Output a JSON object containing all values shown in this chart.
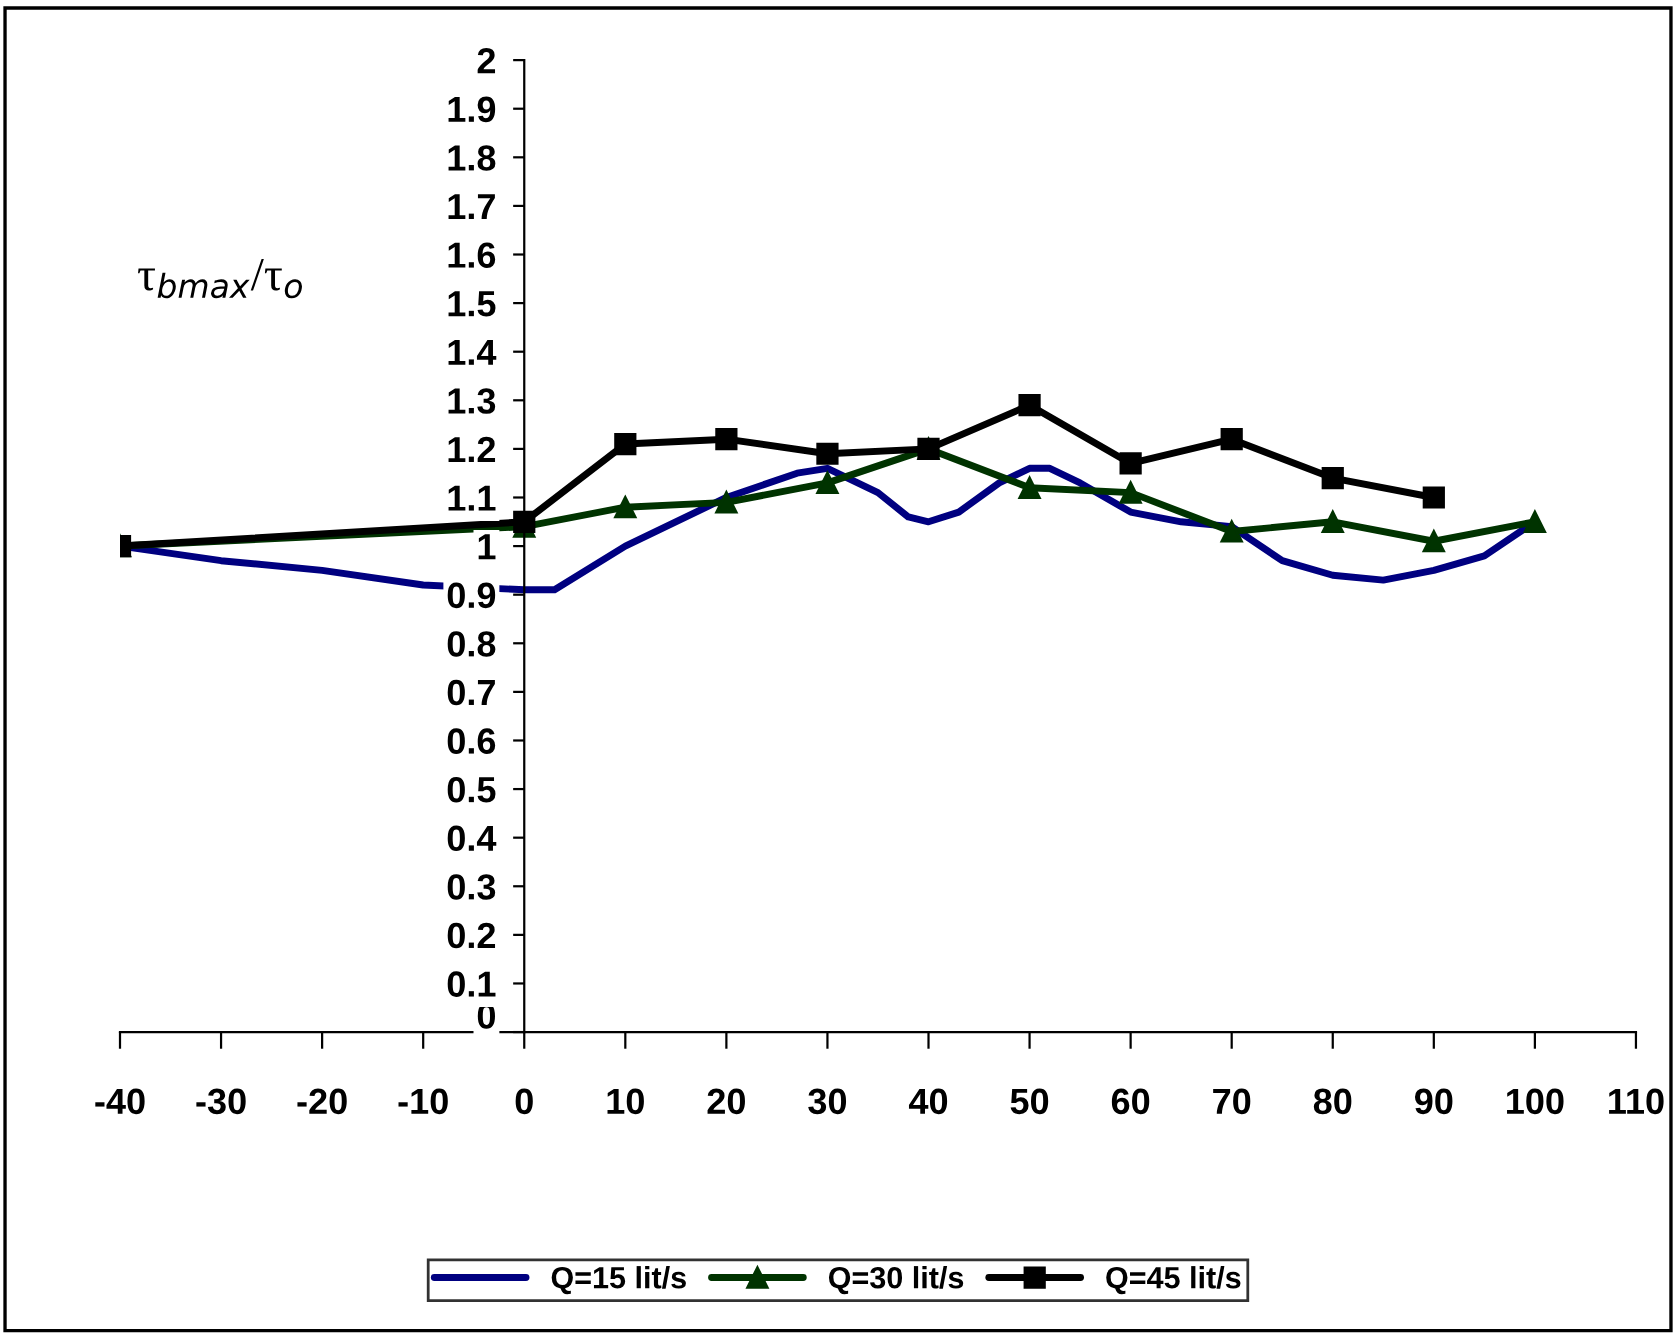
{
  "chart_data": {
    "type": "line",
    "ylabel": "τ$_{bmax}$/τ$_{o}$",
    "xlim": [
      -40,
      110
    ],
    "xticks": [
      -40,
      -30,
      -20,
      -10,
      0,
      10,
      20,
      30,
      40,
      50,
      60,
      70,
      80,
      90,
      100,
      110
    ],
    "ylim": [
      0,
      2
    ],
    "yticks": [
      0,
      0.1,
      0.2,
      0.3,
      0.4,
      0.5,
      0.6,
      0.7,
      0.8,
      0.9,
      1,
      1.1,
      1.2,
      1.3,
      1.4,
      1.5,
      1.6,
      1.7,
      1.8,
      1.9,
      2
    ],
    "grid": false,
    "legend": "bottom",
    "line_style": "solid",
    "series": [
      {
        "name": "Q=15 lit/s",
        "color": "#000080",
        "marker": "none",
        "x": [
          -40,
          -30,
          -20,
          -10,
          0,
          3,
          10,
          20,
          27,
          30,
          35,
          38,
          40,
          43,
          47,
          50,
          52,
          55,
          60,
          65,
          70,
          75,
          80,
          85,
          90,
          95,
          100
        ],
        "values": [
          1.0,
          0.97,
          0.95,
          0.92,
          0.91,
          0.91,
          1.0,
          1.1,
          1.15,
          1.16,
          1.11,
          1.06,
          1.05,
          1.07,
          1.13,
          1.16,
          1.16,
          1.13,
          1.07,
          1.05,
          1.04,
          0.97,
          0.94,
          0.93,
          0.95,
          0.98,
          1.05
        ]
      },
      {
        "name": "Q=30 lit/s",
        "color": "#003300",
        "marker": "triangle",
        "x": [
          -40,
          0,
          10,
          20,
          30,
          40,
          50,
          60,
          70,
          80,
          90,
          100
        ],
        "values": [
          1.0,
          1.04,
          1.08,
          1.09,
          1.13,
          1.2,
          1.12,
          1.11,
          1.03,
          1.05,
          1.01,
          1.05
        ]
      },
      {
        "name": "Q=45 lit/s",
        "color": "#000000",
        "marker": "square",
        "x": [
          -40,
          0,
          10,
          20,
          30,
          40,
          50,
          60,
          70,
          80,
          90
        ],
        "values": [
          1.0,
          1.05,
          1.21,
          1.22,
          1.19,
          1.2,
          1.29,
          1.17,
          1.22,
          1.14,
          1.1
        ]
      }
    ]
  }
}
